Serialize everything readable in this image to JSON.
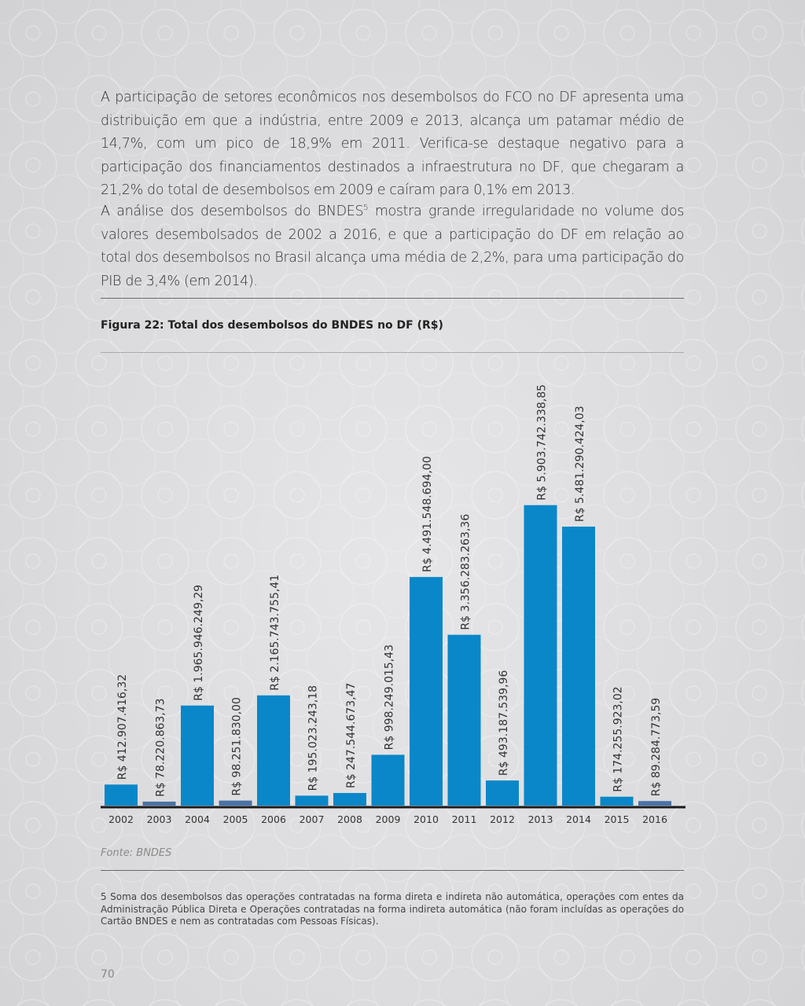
{
  "paragraphs": {
    "p1": "A participação de setores econômicos nos desembolsos do FCO no DF apresenta uma distribuição em que a indústria, entre 2009 e 2013, alcança um patamar médio de 14,7%, com um pico de 18,9% em 2011. Verifica-se destaque negativo para a participação dos financiamentos destinados a infraestrutura no DF, que chegaram a 21,2% do total de desembolsos em 2009 e caíram para 0,1% em 2013.",
    "p2_before": "A análise dos desembolsos do BNDES",
    "p2_sup": "5",
    "p2_after": " mostra grande irregularidade no volume dos valores desembolsados de 2002 a 2016, e que a participação do DF em relação ao total dos desembolsos no Brasil alcança uma média de 2,2%, para uma participação do PIB de 3,4% (em 2014)."
  },
  "figure": {
    "title": "Figura 22: Total dos desembolsos do BNDES no DF (R$)",
    "source": "Fonte: BNDES"
  },
  "footnote": "5  Soma dos desembolsos das operações contratadas na forma direta e indireta não automática, operações com entes da Administração Pública Direta e Operações contratadas na forma indireta automática (não foram incluídas as operações do Cartão BNDES e nem as contratadas com Pessoas Físicas).",
  "page_number": "70",
  "colors": {
    "bar_primary": "#0a87c9",
    "bar_secondary": "#4a73a6",
    "axis": "#1a1a1a"
  },
  "chart_data": {
    "type": "bar",
    "title": "Figura 22: Total dos desembolsos do BNDES no DF (R$)",
    "xlabel": "",
    "ylabel": "",
    "grid": false,
    "categories": [
      "2002",
      "2003",
      "2004",
      "2005",
      "2006",
      "2007",
      "2008",
      "2009",
      "2010",
      "2011",
      "2012",
      "2013",
      "2014",
      "2015",
      "2016"
    ],
    "values": [
      412907416.32,
      78220863.73,
      1965946249.29,
      98251830.0,
      2165743755.41,
      195023243.18,
      247544673.47,
      998249015.43,
      4491548694.0,
      3356283263.36,
      493187539.96,
      5903742338.85,
      5481290424.03,
      174255923.02,
      89284773.59
    ],
    "labels": [
      "R$  412.907.416,32",
      "R$  78.220.863,73",
      "R$  1.965.946.249,29",
      "R$  98.251.830,00",
      "R$  2.165.743.755,41",
      "R$  195.023.243,18",
      "R$  247.544.673,47",
      "R$  998.249.015,43",
      "R$  4.491.548.694,00",
      "R$  3.356.283.263,36",
      "R$  493.187.539,96",
      "R$  5.903.742.338,85",
      "R$  5.481.290.424,03",
      "R$  174.255.923,02",
      "R$  89.284.773,59"
    ],
    "bar_color_keys": [
      "bar_primary",
      "bar_secondary",
      "bar_primary",
      "bar_secondary",
      "bar_primary",
      "bar_primary",
      "bar_primary",
      "bar_primary",
      "bar_primary",
      "bar_primary",
      "bar_primary",
      "bar_primary",
      "bar_primary",
      "bar_primary",
      "bar_secondary"
    ],
    "ylim": [
      0,
      6100000000
    ]
  }
}
